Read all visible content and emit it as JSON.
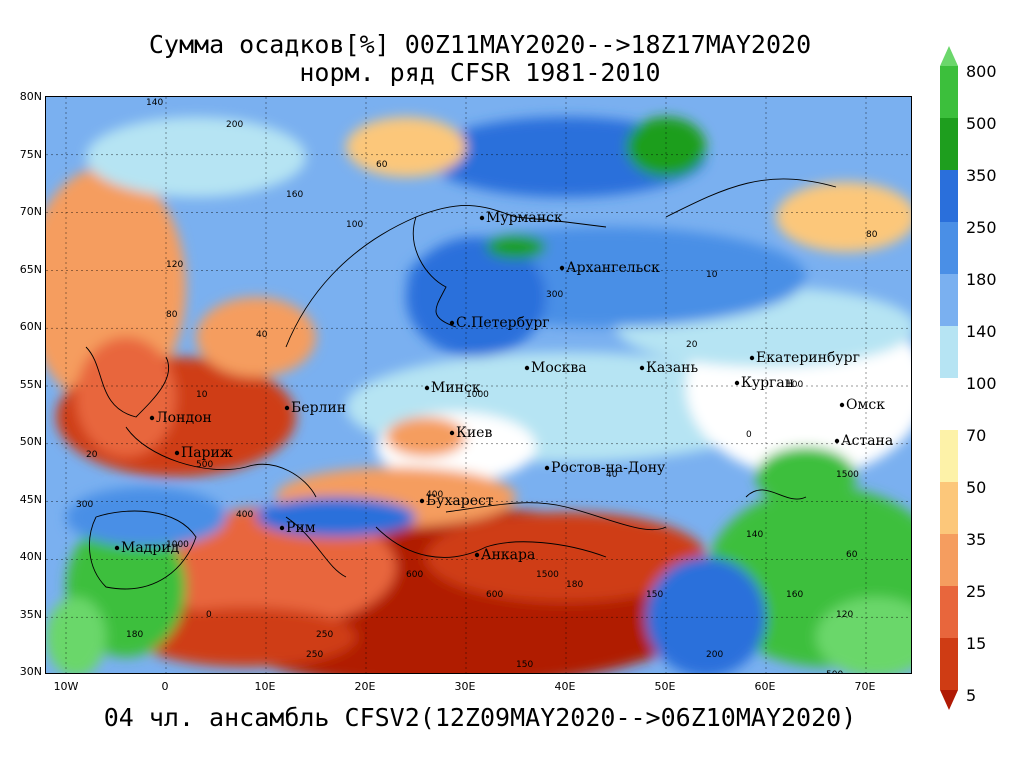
{
  "title": {
    "line1": "Сумма осадков[%] 00Z11MAY2020-->18Z17MAY2020",
    "line2": "норм. ряд CFSR 1981-2010"
  },
  "footer": "04 чл. ансамбль CFSV2(12Z09MAY2020-->06Z10MAY2020)",
  "axes": {
    "lat_labels": [
      "80N",
      "75N",
      "70N",
      "65N",
      "60N",
      "55N",
      "50N",
      "45N",
      "40N",
      "35N",
      "30N"
    ],
    "lon_labels": [
      "10W",
      "0",
      "10E",
      "20E",
      "30E",
      "40E",
      "50E",
      "60E",
      "70E"
    ]
  },
  "legend": {
    "labels": [
      "800",
      "500",
      "350",
      "250",
      "180",
      "140",
      "100",
      "70",
      "50",
      "35",
      "25",
      "15",
      "5"
    ],
    "colors": [
      "#6bd76b",
      "#3cbf3c",
      "#1e9e1e",
      "#2a6fdb",
      "#4a8fe6",
      "#7ab0f0",
      "#b6e4f3",
      "#ffffff",
      "#fdf2a8",
      "#fcc77a",
      "#f59d5f",
      "#e8663c",
      "#cf3c14",
      "#b01a05"
    ]
  },
  "cities": [
    {
      "name": "Мурманск"
    },
    {
      "name": "Архангельск"
    },
    {
      "name": "С.Петербург"
    },
    {
      "name": "Москва"
    },
    {
      "name": "Казань"
    },
    {
      "name": "Екатеринбург"
    },
    {
      "name": "Курган"
    },
    {
      "name": "Омск"
    },
    {
      "name": "Астана"
    },
    {
      "name": "Минск"
    },
    {
      "name": "Берлин"
    },
    {
      "name": "Лондон"
    },
    {
      "name": "Париж"
    },
    {
      "name": "Киев"
    },
    {
      "name": "Ростов-на-Дону"
    },
    {
      "name": "Бухарест"
    },
    {
      "name": "Рим"
    },
    {
      "name": "Мадрид"
    },
    {
      "name": "Анкара"
    }
  ],
  "contour_labels": [
    "140",
    "200",
    "160",
    "120",
    "60",
    "100",
    "80",
    "40",
    "20",
    "10",
    "300",
    "500",
    "400",
    "1000",
    "180",
    "150",
    "0",
    "250",
    "600",
    "1500"
  ]
}
